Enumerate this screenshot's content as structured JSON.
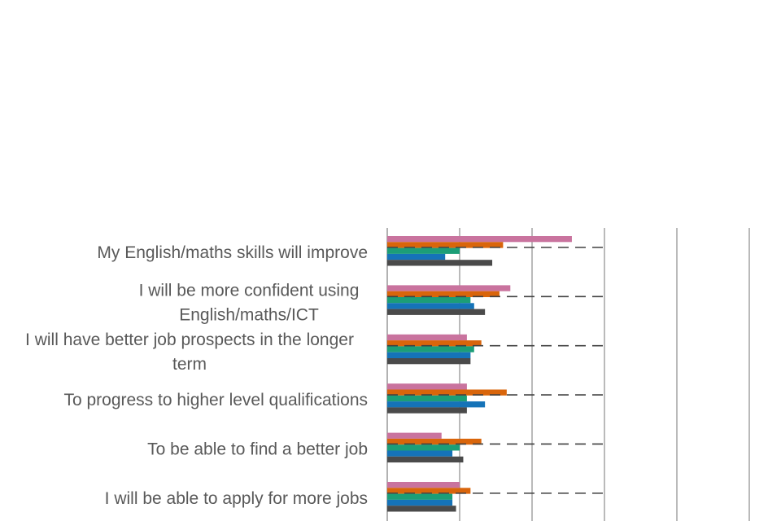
{
  "chart_data": {
    "type": "bar",
    "orientation": "horizontal",
    "title": "",
    "xlabel": "",
    "ylabel": "",
    "grid": true,
    "categories": [
      [
        "My English/maths skills will improve"
      ],
      [
        "I will be more confident using",
        "English/maths/ICT"
      ],
      [
        "I will have better job prospects in the longer",
        "term"
      ],
      [
        "To progress to higher level qualifications"
      ],
      [
        "To be able to find a better job"
      ],
      [
        "I will be able to apply for more jobs"
      ]
    ],
    "series": [
      {
        "color": "#C9739E",
        "values": [
          51,
          34,
          22,
          22,
          15,
          20
        ]
      },
      {
        "color": "#D9650B",
        "values": [
          32,
          31,
          26,
          33,
          26,
          23
        ]
      },
      {
        "color": "#1C9E77",
        "values": [
          20,
          23,
          24,
          22,
          20,
          18
        ]
      },
      {
        "color": "#1573B8",
        "values": [
          16,
          24,
          23,
          27,
          18,
          18
        ]
      },
      {
        "color": "#4A4A4A",
        "values": [
          29,
          27,
          23,
          22,
          21,
          19
        ]
      }
    ],
    "reference_line": {
      "value": 60,
      "style": "dashed",
      "color": "#404040"
    }
  }
}
